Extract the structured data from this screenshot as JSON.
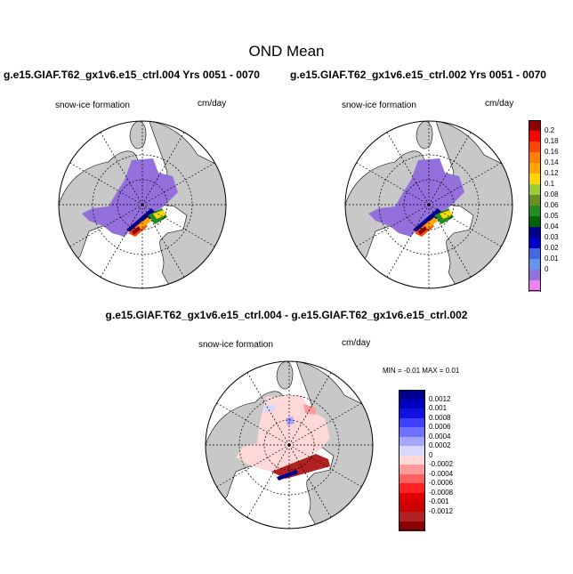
{
  "figure": {
    "title": "OND Mean",
    "panel_left_title": "g.e15.GIAF.T62_gx1v6.e15_ctrl.004  Yrs 0051 - 0070",
    "panel_right_title": "g.e15.GIAF.T62_gx1v6.e15_ctrl.002  Yrs 0051 - 0070",
    "diff_title": "g.e15.GIAF.T62_gx1v6.e15_ctrl.004 - g.e15.GIAF.T62_gx1v6.e15_ctrl.002",
    "field_label": "snow-ice formation",
    "units": "cm/day",
    "diff_stats": "MIN =  -0.01 MAX =   0.01"
  },
  "chart_data": [
    {
      "type": "heatmap",
      "projection": "north-polar-stereographic",
      "title": "g.e15.GIAF.T62_gx1v6.e15_ctrl.004  Yrs 0051 - 0070",
      "field": "snow-ice formation",
      "units": "cm/day",
      "colorbar": {
        "levels": [
          "0",
          "0.01",
          "0.02",
          "0.03",
          "0.04",
          "0.05",
          "0.06",
          "0.08",
          "0.1",
          "0.12",
          "0.14",
          "0.16",
          "0.18",
          "0.2"
        ],
        "colors": [
          "#ee82ee",
          "#9370db",
          "#6495ed",
          "#4169e1",
          "#0000cd",
          "#00008b",
          "#006400",
          "#228b22",
          "#6b8e23",
          "#9acd32",
          "#ffd700",
          "#ffa500",
          "#ff7f00",
          "#ff4500",
          "#ff0000",
          "#8b0000"
        ]
      }
    },
    {
      "type": "heatmap",
      "projection": "north-polar-stereographic",
      "title": "g.e15.GIAF.T62_gx1v6.e15_ctrl.002  Yrs 0051 - 0070",
      "field": "snow-ice formation",
      "units": "cm/day"
    },
    {
      "type": "heatmap",
      "projection": "north-polar-stereographic",
      "title": "g.e15.GIAF.T62_gx1v6.e15_ctrl.004 - g.e15.GIAF.T62_gx1v6.e15_ctrl.002",
      "field": "snow-ice formation",
      "units": "cm/day",
      "min": -0.01,
      "max": 0.01,
      "colorbar": {
        "levels": [
          "0.0012",
          "0.001",
          "0.0008",
          "0.0006",
          "0.0004",
          "0.0002",
          "0",
          "-0.0002",
          "-0.0004",
          "-0.0006",
          "-0.0008",
          "-0.001",
          "-0.0012"
        ],
        "colors": [
          "#8b0000",
          "#b22222",
          "#cc0000",
          "#e00000",
          "#ff2020",
          "#ff6060",
          "#ff9a9a",
          "#ffd8d8",
          "#d8d8ff",
          "#a6a6ff",
          "#7070ff",
          "#4040ff",
          "#1010e0",
          "#0000c0",
          "#000090"
        ]
      }
    }
  ]
}
